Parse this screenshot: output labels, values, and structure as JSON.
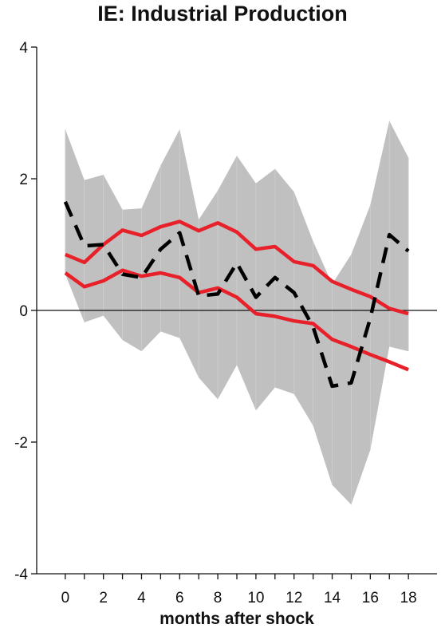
{
  "chart_data": {
    "type": "line",
    "title": "IE: Industrial Production",
    "xlabel": "months after shock",
    "ylabel": "",
    "xlim": [
      -1.5,
      19.5
    ],
    "ylim": [
      -4,
      4
    ],
    "xticks": [
      0,
      2,
      4,
      6,
      8,
      10,
      12,
      14,
      16,
      18
    ],
    "yticks": [
      4,
      2,
      0,
      -2,
      -4
    ],
    "x": [
      0,
      1,
      2,
      3,
      4,
      5,
      6,
      7,
      8,
      9,
      10,
      11,
      12,
      13,
      14,
      15,
      16,
      17,
      18
    ],
    "band": {
      "upper": [
        2.75,
        1.98,
        2.06,
        1.53,
        1.55,
        2.2,
        2.75,
        1.38,
        1.82,
        2.35,
        1.93,
        2.15,
        1.8,
        1.05,
        0.4,
        0.85,
        1.6,
        2.88,
        2.32
      ],
      "lower": [
        0.55,
        -0.18,
        -0.08,
        -0.45,
        -0.62,
        -0.32,
        -0.42,
        -1.02,
        -1.35,
        -0.83,
        -1.52,
        -1.17,
        -1.27,
        -1.75,
        -2.65,
        -2.95,
        -2.12,
        -0.55,
        -0.62
      ],
      "color": "#c0c0c0"
    },
    "series": [
      {
        "values": [
          0.85,
          0.73,
          1.0,
          1.22,
          1.14,
          1.27,
          1.35,
          1.21,
          1.33,
          1.19,
          0.93,
          0.97,
          0.74,
          0.68,
          0.44,
          0.32,
          0.21,
          0.03,
          -0.05
        ],
        "color": "#e8202a",
        "style": "solid"
      },
      {
        "values": [
          0.57,
          0.36,
          0.45,
          0.61,
          0.52,
          0.57,
          0.5,
          0.27,
          0.34,
          0.2,
          -0.05,
          -0.09,
          -0.16,
          -0.2,
          -0.44,
          -0.55,
          -0.67,
          -0.78,
          -0.9
        ],
        "color": "#e8202a",
        "style": "solid"
      },
      {
        "values": [
          1.65,
          0.98,
          1.0,
          0.55,
          0.5,
          0.93,
          1.18,
          0.22,
          0.25,
          0.72,
          0.2,
          0.5,
          0.27,
          -0.25,
          -1.15,
          -1.1,
          -0.12,
          1.15,
          0.9
        ],
        "color": "#000000",
        "style": "dashed"
      }
    ],
    "zero_line": true,
    "grid": false,
    "legend": "none"
  }
}
